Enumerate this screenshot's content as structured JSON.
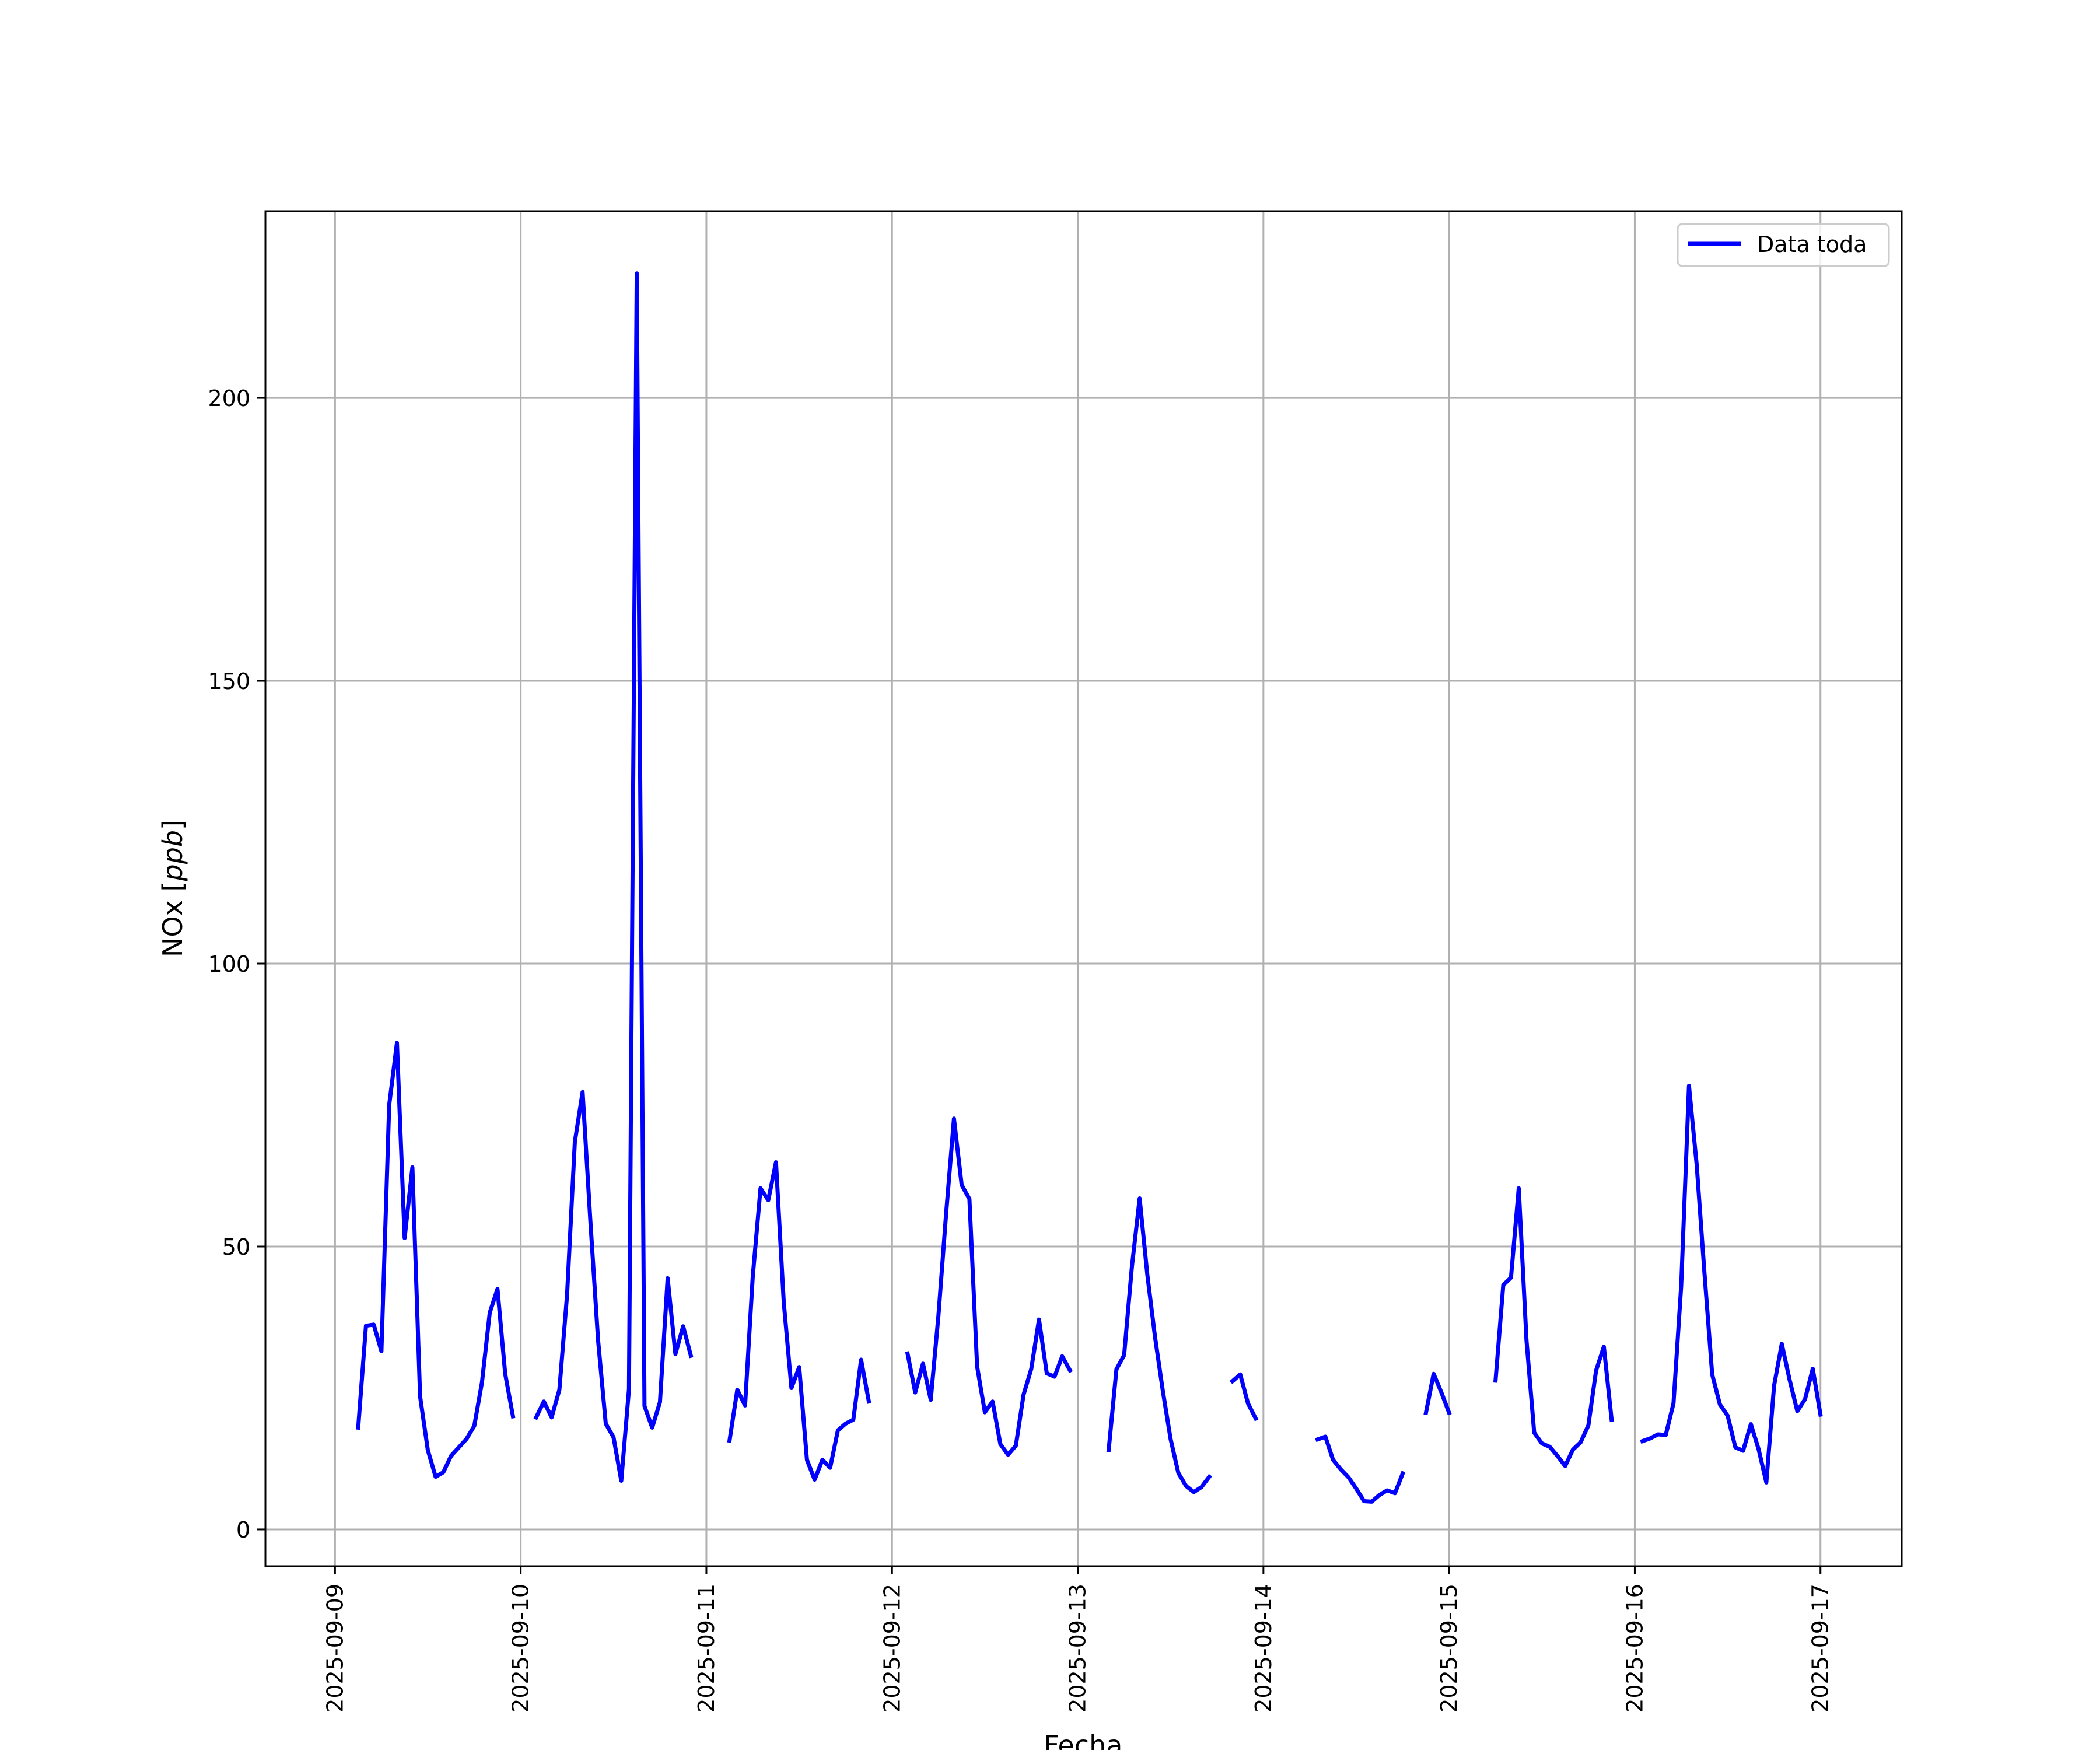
{
  "chart_data": {
    "type": "line",
    "xlabel": "Fecha",
    "ylabel": "NOx",
    "ylabel_unit": "ppb",
    "xlim": [
      "2025-09-08T15:00",
      "2025-09-17T10:30"
    ],
    "ylim": [
      -6.5,
      233
    ],
    "x_ticks": [
      "2025-09-09",
      "2025-09-10",
      "2025-09-11",
      "2025-09-12",
      "2025-09-13",
      "2025-09-14",
      "2025-09-15",
      "2025-09-16",
      "2025-09-17"
    ],
    "y_ticks": [
      0,
      50,
      100,
      150,
      200
    ],
    "grid": true,
    "legend_position": "top-right",
    "colors": {
      "series": "#0000ff",
      "grid": "#b0b0b0"
    },
    "series": [
      {
        "name": "Data toda",
        "segments": [
          [
            [
              "2025-09-09T03:00",
              18
            ],
            [
              "2025-09-09T04:00",
              36
            ],
            [
              "2025-09-09T05:00",
              36.2
            ],
            [
              "2025-09-09T06:00",
              31.5
            ],
            [
              "2025-09-09T07:00",
              75
            ],
            [
              "2025-09-09T08:00",
              86
            ],
            [
              "2025-09-09T09:00",
              51.5
            ],
            [
              "2025-09-09T10:00",
              64
            ],
            [
              "2025-09-09T11:00",
              23.5
            ],
            [
              "2025-09-09T12:00",
              14
            ],
            [
              "2025-09-09T13:00",
              9.3
            ],
            [
              "2025-09-09T14:00",
              10.1
            ],
            [
              "2025-09-09T15:00",
              13
            ],
            [
              "2025-09-09T16:00",
              14.5
            ],
            [
              "2025-09-09T17:00",
              16
            ],
            [
              "2025-09-09T18:00",
              18.3
            ],
            [
              "2025-09-09T19:00",
              26
            ],
            [
              "2025-09-09T20:00",
              38.3
            ],
            [
              "2025-09-09T21:00",
              42.5
            ],
            [
              "2025-09-09T22:00",
              27.5
            ],
            [
              "2025-09-09T23:00",
              20
            ]
          ],
          [
            [
              "2025-09-10T02:00",
              19.8
            ],
            [
              "2025-09-10T03:00",
              22.6
            ],
            [
              "2025-09-10T04:00",
              19.8
            ],
            [
              "2025-09-10T05:00",
              24.7
            ],
            [
              "2025-09-10T06:00",
              41.5
            ],
            [
              "2025-09-10T07:00",
              68.5
            ],
            [
              "2025-09-10T08:00",
              77.3
            ],
            [
              "2025-09-10T09:00",
              54.7
            ],
            [
              "2025-09-10T10:00",
              33.5
            ],
            [
              "2025-09-10T11:00",
              18.7
            ],
            [
              "2025-09-10T12:00",
              16.3
            ],
            [
              "2025-09-10T13:00",
              8.6
            ],
            [
              "2025-09-10T14:00",
              24.8
            ],
            [
              "2025-09-10T15:00",
              222
            ],
            [
              "2025-09-10T16:00",
              21.8
            ],
            [
              "2025-09-10T17:00",
              18
            ],
            [
              "2025-09-10T18:00",
              22.5
            ],
            [
              "2025-09-10T19:00",
              44.4
            ],
            [
              "2025-09-10T20:00",
              31
            ],
            [
              "2025-09-10T21:00",
              35.9
            ],
            [
              "2025-09-10T22:00",
              30.7
            ]
          ],
          [
            [
              "2025-09-11T03:00",
              15.7
            ],
            [
              "2025-09-11T04:00",
              24.7
            ],
            [
              "2025-09-11T05:00",
              21.9
            ],
            [
              "2025-09-11T06:00",
              44.7
            ],
            [
              "2025-09-11T07:00",
              60.3
            ],
            [
              "2025-09-11T08:00",
              58.2
            ],
            [
              "2025-09-11T09:00",
              64.9
            ],
            [
              "2025-09-11T10:00",
              40.2
            ],
            [
              "2025-09-11T11:00",
              25
            ],
            [
              "2025-09-11T12:00",
              28.7
            ],
            [
              "2025-09-11T13:00",
              12.3
            ],
            [
              "2025-09-11T14:00",
              8.8
            ],
            [
              "2025-09-11T15:00",
              12.3
            ],
            [
              "2025-09-11T16:00",
              10.9
            ],
            [
              "2025-09-11T17:00",
              17.5
            ],
            [
              "2025-09-11T18:00",
              18.7
            ],
            [
              "2025-09-11T19:00",
              19.4
            ],
            [
              "2025-09-11T20:00",
              30
            ],
            [
              "2025-09-11T21:00",
              22.6
            ]
          ],
          [
            [
              "2025-09-12T02:00",
              31.1
            ],
            [
              "2025-09-12T03:00",
              24.2
            ],
            [
              "2025-09-12T04:00",
              29.3
            ],
            [
              "2025-09-12T05:00",
              22.9
            ],
            [
              "2025-09-12T06:00",
              37.8
            ],
            [
              "2025-09-12T07:00",
              56
            ],
            [
              "2025-09-12T08:00",
              72.6
            ],
            [
              "2025-09-12T09:00",
              60.9
            ],
            [
              "2025-09-12T10:00",
              58.4
            ],
            [
              "2025-09-12T11:00",
              28.8
            ],
            [
              "2025-09-12T12:00",
              20.7
            ],
            [
              "2025-09-12T13:00",
              22.6
            ],
            [
              "2025-09-12T14:00",
              15.1
            ],
            [
              "2025-09-12T15:00",
              13.2
            ],
            [
              "2025-09-12T16:00",
              14.8
            ],
            [
              "2025-09-12T17:00",
              23.8
            ],
            [
              "2025-09-12T18:00",
              28.4
            ],
            [
              "2025-09-12T19:00",
              37.1
            ],
            [
              "2025-09-12T20:00",
              27.6
            ],
            [
              "2025-09-12T21:00",
              27
            ],
            [
              "2025-09-12T22:00",
              30.6
            ],
            [
              "2025-09-12T23:00",
              28.1
            ]
          ],
          [
            [
              "2025-09-13T04:00",
              14
            ],
            [
              "2025-09-13T05:00",
              28.3
            ],
            [
              "2025-09-13T06:00",
              30.8
            ],
            [
              "2025-09-13T07:00",
              46.4
            ],
            [
              "2025-09-13T08:00",
              58.5
            ],
            [
              "2025-09-13T09:00",
              45
            ],
            [
              "2025-09-13T10:00",
              33.9
            ],
            [
              "2025-09-13T11:00",
              24.5
            ],
            [
              "2025-09-13T12:00",
              16
            ],
            [
              "2025-09-13T13:00",
              10
            ],
            [
              "2025-09-13T14:00",
              7.7
            ],
            [
              "2025-09-13T15:00",
              6.6
            ],
            [
              "2025-09-13T16:00",
              7.5
            ],
            [
              "2025-09-13T17:00",
              9.3
            ]
          ],
          [
            [
              "2025-09-13T20:00",
              26.2
            ],
            [
              "2025-09-13T21:00",
              27.4
            ],
            [
              "2025-09-13T22:00",
              22.3
            ],
            [
              "2025-09-13T23:00",
              19.6
            ]
          ],
          [
            [
              "2025-09-14T07:00",
              15.9
            ],
            [
              "2025-09-14T08:00",
              16.4
            ],
            [
              "2025-09-14T09:00",
              12.3
            ],
            [
              "2025-09-14T10:00",
              10.6
            ],
            [
              "2025-09-14T11:00",
              9.2
            ],
            [
              "2025-09-14T12:00",
              7.2
            ],
            [
              "2025-09-14T13:00",
              5
            ],
            [
              "2025-09-14T14:00",
              4.9
            ],
            [
              "2025-09-14T15:00",
              6.1
            ],
            [
              "2025-09-14T16:00",
              6.9
            ],
            [
              "2025-09-14T17:00",
              6.4
            ],
            [
              "2025-09-14T18:00",
              9.9
            ]
          ],
          [
            [
              "2025-09-14T21:00",
              20.6
            ],
            [
              "2025-09-14T22:00",
              27.5
            ],
            [
              "2025-09-14T23:00",
              24.2
            ],
            [
              "2025-09-15T00:00",
              20.6
            ]
          ],
          [
            [
              "2025-09-15T06:00",
              26.3
            ],
            [
              "2025-09-15T07:00",
              43.2
            ],
            [
              "2025-09-15T08:00",
              44.5
            ],
            [
              "2025-09-15T09:00",
              60.3
            ],
            [
              "2025-09-15T10:00",
              33.4
            ],
            [
              "2025-09-15T11:00",
              17.1
            ],
            [
              "2025-09-15T12:00",
              15.2
            ],
            [
              "2025-09-15T13:00",
              14.6
            ],
            [
              "2025-09-15T14:00",
              13
            ],
            [
              "2025-09-15T15:00",
              11.2
            ],
            [
              "2025-09-15T16:00",
              14.1
            ],
            [
              "2025-09-15T17:00",
              15.4
            ],
            [
              "2025-09-15T18:00",
              18.4
            ],
            [
              "2025-09-15T19:00",
              28.1
            ],
            [
              "2025-09-15T20:00",
              32.3
            ],
            [
              "2025-09-15T21:00",
              19.4
            ]
          ],
          [
            [
              "2025-09-16T01:00",
              15.6
            ],
            [
              "2025-09-16T02:00",
              16.1
            ],
            [
              "2025-09-16T03:00",
              16.8
            ],
            [
              "2025-09-16T04:00",
              16.7
            ],
            [
              "2025-09-16T05:00",
              22.3
            ],
            [
              "2025-09-16T06:00",
              43.1
            ],
            [
              "2025-09-16T07:00",
              78.4
            ],
            [
              "2025-09-16T08:00",
              64.5
            ],
            [
              "2025-09-16T09:00",
              45.4
            ],
            [
              "2025-09-16T10:00",
              27.4
            ],
            [
              "2025-09-16T11:00",
              22.1
            ],
            [
              "2025-09-16T12:00",
              20.1
            ],
            [
              "2025-09-16T13:00",
              14.5
            ],
            [
              "2025-09-16T14:00",
              13.9
            ],
            [
              "2025-09-16T15:00",
              18.6
            ],
            [
              "2025-09-16T16:00",
              14.2
            ],
            [
              "2025-09-16T17:00",
              8.3
            ],
            [
              "2025-09-16T18:00",
              25.4
            ],
            [
              "2025-09-16T19:00",
              32.8
            ],
            [
              "2025-09-16T20:00",
              26.5
            ],
            [
              "2025-09-16T21:00",
              20.9
            ],
            [
              "2025-09-16T22:00",
              23
            ],
            [
              "2025-09-16T23:00",
              28.4
            ],
            [
              "2025-09-17T00:00",
              20.3
            ]
          ]
        ]
      }
    ]
  }
}
